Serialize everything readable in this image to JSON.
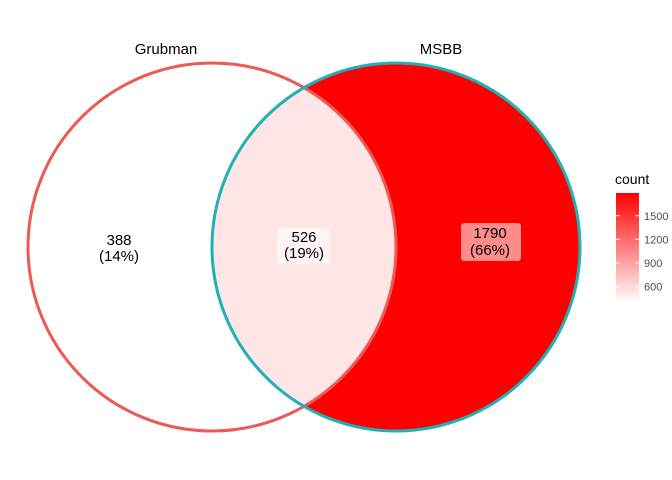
{
  "chart_data": {
    "type": "venn",
    "sets": [
      {
        "name": "Grubman",
        "color": "#EB5A55"
      },
      {
        "name": "MSBB",
        "color": "#1FB1B5"
      }
    ],
    "regions": [
      {
        "id": "grubman-only",
        "sets": [
          "Grubman"
        ],
        "count": "388",
        "percent": "(14%)",
        "value": 388
      },
      {
        "id": "overlap",
        "sets": [
          "Grubman",
          "MSBB"
        ],
        "count": "526",
        "percent": "(19%)",
        "value": 526
      },
      {
        "id": "msbb-only",
        "sets": [
          "MSBB"
        ],
        "count": "1790",
        "percent": "(66%)",
        "value": 1790
      }
    ],
    "fill_scale": {
      "low_color": "#FFFFFF",
      "high_color": "#FF0000",
      "min": 388,
      "max": 1790
    },
    "legend": {
      "title": "count",
      "position": "right",
      "ticks": [
        {
          "label": "600",
          "value": 600
        },
        {
          "label": "900",
          "value": 900
        },
        {
          "label": "1200",
          "value": 1200
        },
        {
          "label": "1500",
          "value": 1500
        }
      ]
    }
  }
}
